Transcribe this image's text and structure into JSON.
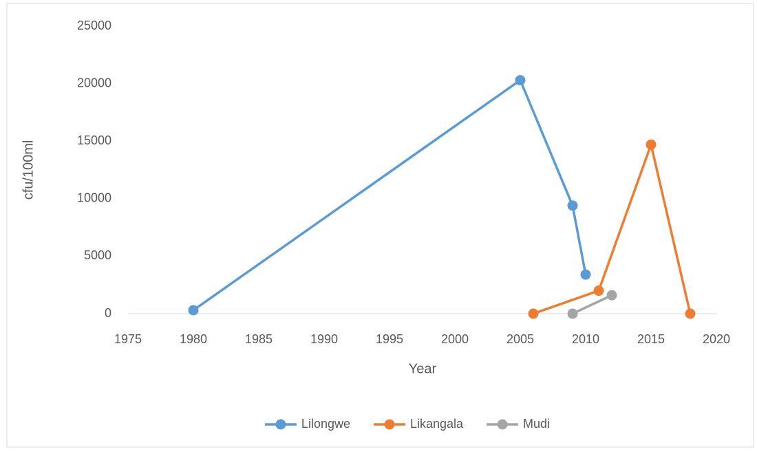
{
  "chart_data": {
    "type": "line",
    "x_label": "Year",
    "y_label": "cfu/100ml",
    "xlim": [
      1975,
      2020
    ],
    "xticks": [
      1975,
      1980,
      1985,
      1990,
      1995,
      2000,
      2005,
      2010,
      2015,
      2020
    ],
    "ylim": [
      0,
      25000
    ],
    "yticks": [
      0,
      5000,
      10000,
      15000,
      20000,
      25000
    ],
    "grid": false,
    "legend": "bottom",
    "series": [
      {
        "name": "Lilongwe",
        "color": "#5b9bd5",
        "x": [
          1980,
          2005,
          2009,
          2010
        ],
        "values": [
          300,
          20300,
          9400,
          3400
        ]
      },
      {
        "name": "Likangala",
        "color": "#ed7d31",
        "x": [
          2006,
          2011,
          2015,
          2018
        ],
        "values": [
          0,
          2000,
          14700,
          0
        ]
      },
      {
        "name": "Mudi",
        "color": "#a5a5a5",
        "x": [
          2009,
          2012
        ],
        "values": [
          0,
          1600
        ]
      }
    ]
  }
}
